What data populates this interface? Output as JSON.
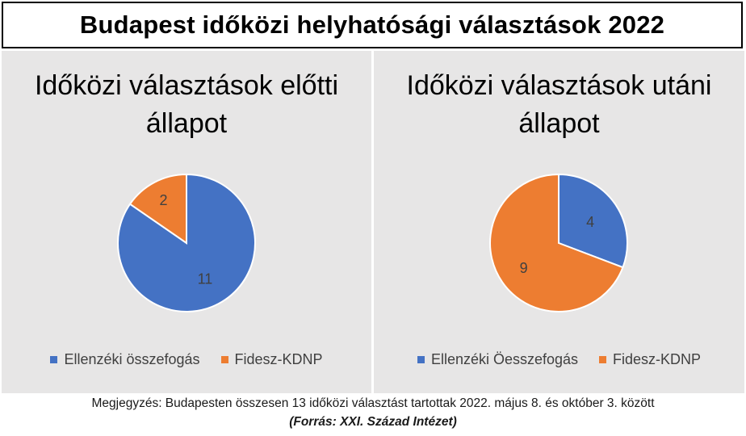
{
  "header": {
    "title": "Budapest időközi helyhatósági választások 2022"
  },
  "chart_data": [
    {
      "type": "pie",
      "title_lines": [
        "Időközi választások előtti",
        "állapot"
      ],
      "categories": [
        "Ellenzéki összefogás",
        "Fidesz-KDNP"
      ],
      "values": [
        11,
        2
      ],
      "colors": [
        "#4472c4",
        "#ed7d31"
      ],
      "data_labels": [
        "11",
        "2"
      ],
      "legend_position": "bottom"
    },
    {
      "type": "pie",
      "title_lines": [
        "Időközi választások utáni",
        "állapot"
      ],
      "categories": [
        "Ellenzéki Öesszefogás",
        "Fidesz-KDNP"
      ],
      "values": [
        4,
        9
      ],
      "colors": [
        "#4472c4",
        "#ed7d31"
      ],
      "data_labels": [
        "4",
        "9"
      ],
      "legend_position": "bottom"
    }
  ],
  "footer": {
    "note": "Megjegyzés: Budapesten összesen 13 időközi választást tartottak 2022. május 8. és október 3. között",
    "source": "(Forrás: XXI. Század Intézet)"
  }
}
